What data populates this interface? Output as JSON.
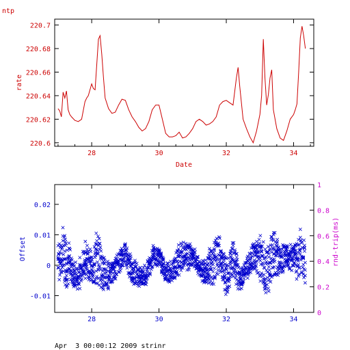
{
  "header_label": "ntp",
  "footer_text": "Apr  3 00:00:12 2009 strinr",
  "colors": {
    "top_series": "#cc0000",
    "bottom_series": "#0000cc",
    "right_axis": "#cc00cc",
    "frame": "#000000"
  },
  "chart_data": [
    {
      "type": "line",
      "title": "",
      "xlabel": "Date",
      "ylabel": "rate",
      "xlim": [
        26.9,
        34.6
      ],
      "ylim": [
        220.597,
        220.705
      ],
      "xticks": [
        28,
        30,
        32,
        34
      ],
      "yticks": [
        220.6,
        220.62,
        220.64,
        220.66,
        220.68,
        220.7
      ],
      "grid": false,
      "series": [
        {
          "name": "",
          "x": [
            27.0,
            27.05,
            27.1,
            27.15,
            27.2,
            27.25,
            27.3,
            27.35,
            27.4,
            27.5,
            27.6,
            27.7,
            27.8,
            27.85,
            27.9,
            28.0,
            28.05,
            28.1,
            28.2,
            28.25,
            28.3,
            28.35,
            28.4,
            28.5,
            28.6,
            28.7,
            28.8,
            28.9,
            29.0,
            29.1,
            29.2,
            29.3,
            29.4,
            29.5,
            29.6,
            29.7,
            29.8,
            29.9,
            30.0,
            30.1,
            30.2,
            30.3,
            30.4,
            30.5,
            30.6,
            30.7,
            30.8,
            30.9,
            31.0,
            31.1,
            31.2,
            31.3,
            31.4,
            31.5,
            31.6,
            31.7,
            31.8,
            31.9,
            32.0,
            32.1,
            32.2,
            32.3,
            32.35,
            32.4,
            32.5,
            32.6,
            32.7,
            32.8,
            32.9,
            33.0,
            33.05,
            33.1,
            33.15,
            33.2,
            33.25,
            33.3,
            33.35,
            33.4,
            33.5,
            33.6,
            33.7,
            33.8,
            33.9,
            34.0,
            34.05,
            34.1,
            34.15,
            34.2,
            34.25,
            34.3,
            34.35
          ],
          "y": [
            220.629,
            220.627,
            220.622,
            220.643,
            220.638,
            220.644,
            220.628,
            220.624,
            220.622,
            220.619,
            220.618,
            220.62,
            220.635,
            220.638,
            220.64,
            220.65,
            220.646,
            220.645,
            220.688,
            220.691,
            220.675,
            220.655,
            220.638,
            220.629,
            220.625,
            220.626,
            220.632,
            220.637,
            220.636,
            220.628,
            220.622,
            220.618,
            220.613,
            220.61,
            220.612,
            220.618,
            220.628,
            220.632,
            220.632,
            220.62,
            220.608,
            220.605,
            220.605,
            220.606,
            220.609,
            220.604,
            220.605,
            220.608,
            220.612,
            220.618,
            220.62,
            220.618,
            220.615,
            220.616,
            220.618,
            220.622,
            220.632,
            220.635,
            220.636,
            220.634,
            220.632,
            220.655,
            220.664,
            220.648,
            220.62,
            220.612,
            220.605,
            220.6,
            220.61,
            220.624,
            220.64,
            220.688,
            220.655,
            220.632,
            220.641,
            220.655,
            220.662,
            220.628,
            220.612,
            220.604,
            220.602,
            220.61,
            220.62,
            220.624,
            220.628,
            220.633,
            220.66,
            220.689,
            220.699,
            220.691,
            220.68
          ]
        }
      ]
    },
    {
      "type": "scatter",
      "title": "",
      "xlabel": "",
      "ylabel": "Offset",
      "y2label": "rnd-trip(ms)",
      "xlim": [
        26.9,
        34.6
      ],
      "ylim": [
        -0.0155,
        0.0265
      ],
      "y2lim": [
        0,
        1
      ],
      "xticks": [
        28,
        30,
        32,
        34
      ],
      "yticks": [
        -0.01,
        0,
        0.01,
        0.02
      ],
      "y2ticks": [
        0,
        0.2,
        0.4,
        0.6,
        0.8,
        1
      ],
      "grid": false,
      "marker": "x",
      "series": [
        {
          "name": "",
          "center": {
            "x": [
              27.0,
              27.2,
              27.4,
              27.6,
              27.8,
              28.0,
              28.2,
              28.4,
              28.6,
              28.8,
              29.0,
              29.2,
              29.4,
              29.6,
              29.8,
              30.0,
              30.2,
              30.4,
              30.6,
              30.8,
              31.0,
              31.2,
              31.4,
              31.6,
              31.8,
              32.0,
              32.2,
              32.4,
              32.6,
              32.8,
              33.0,
              33.2,
              33.4,
              33.6,
              33.8,
              34.0,
              34.2,
              34.35
            ],
            "y": [
              0.002,
              0.003,
              -0.002,
              -0.004,
              0.002,
              -0.001,
              0.002,
              -0.004,
              -0.003,
              0.001,
              0.004,
              -0.002,
              -0.003,
              -0.004,
              0.003,
              0.003,
              -0.003,
              -0.002,
              0.002,
              0.003,
              0.003,
              -0.001,
              -0.003,
              0.001,
              0.004,
              -0.004,
              0.002,
              -0.005,
              -0.001,
              0.003,
              0.002,
              -0.002,
              0.003,
              0.002,
              0.003,
              0.002,
              0.003,
              0.001
            ]
          },
          "spread": {
            "x": [
              27.0,
              27.2,
              27.4,
              27.6,
              27.8,
              28.0,
              28.2,
              28.4,
              28.6,
              28.8,
              29.0,
              29.2,
              29.4,
              29.6,
              29.8,
              30.0,
              30.2,
              30.4,
              30.6,
              30.8,
              31.0,
              31.2,
              31.4,
              31.6,
              31.8,
              32.0,
              32.2,
              32.4,
              32.6,
              32.8,
              33.0,
              33.2,
              33.4,
              33.6,
              33.8,
              34.0,
              34.2,
              34.35
            ],
            "y": [
              0.007,
              0.012,
              0.006,
              0.005,
              0.007,
              0.006,
              0.012,
              0.006,
              0.004,
              0.004,
              0.004,
              0.005,
              0.004,
              0.004,
              0.004,
              0.004,
              0.004,
              0.004,
              0.006,
              0.005,
              0.005,
              0.003,
              0.005,
              0.01,
              0.006,
              0.008,
              0.007,
              0.005,
              0.004,
              0.006,
              0.009,
              0.009,
              0.009,
              0.006,
              0.004,
              0.005,
              0.01,
              0.008
            ]
          }
        }
      ]
    }
  ]
}
